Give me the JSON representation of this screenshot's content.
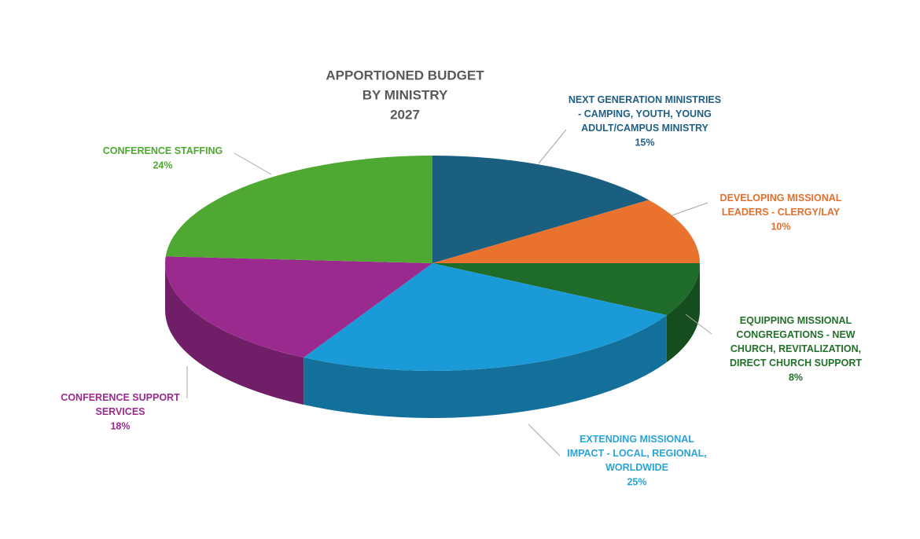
{
  "chart_data": {
    "type": "pie",
    "title": [
      "APPORTIONED BUDGET",
      "BY MINISTRY",
      "2027"
    ],
    "categories": [
      "NEXT GENERATION MINISTRIES - CAMPING, YOUTH, YOUNG ADULT/CAMPUS MINISTRY",
      "DEVELOPING MISSIONAL LEADERS - CLERGY/LAY",
      "EQUIPPING MISSIONAL CONGREGATIONS - NEW CHURCH, REVITALIZATION, DIRECT CHURCH SUPPORT",
      "EXTENDING MISSIONAL IMPACT - LOCAL, REGIONAL, WORLDWIDE",
      "CONFERENCE SUPPORT SERVICES",
      "CONFERENCE STAFFING"
    ],
    "values": [
      15,
      10,
      8,
      25,
      18,
      24
    ],
    "value_labels": [
      "15%",
      "10%",
      "8%",
      "25%",
      "18%",
      "24%"
    ],
    "colors": [
      "#1a5e80",
      "#e8722e",
      "#1e6b2a",
      "#1a9bd7",
      "#9b2a8f",
      "#4ea832"
    ],
    "label_colors": [
      "#1f5f85",
      "#e0702f",
      "#23702b",
      "#2aa3d8",
      "#9a2a90",
      "#4ea832"
    ]
  }
}
